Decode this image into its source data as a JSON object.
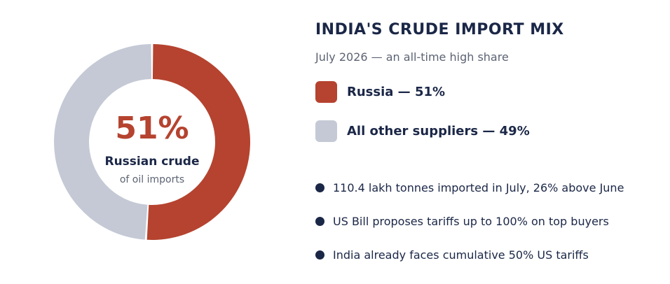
{
  "colors": {
    "russia": "#b5432f",
    "others": "#c4c9d5",
    "navy": "#1b2747",
    "muted": "#5c6373"
  },
  "chart_data": {
    "type": "pie",
    "variant": "donut",
    "title": "INDIA'S CRUDE IMPORT MIX",
    "subtitle": "July 2026 — an all-time high share",
    "slices": [
      {
        "label": "Russia",
        "value": 51,
        "color": "#b5432f",
        "legend": "Russia  —  51%"
      },
      {
        "label": "All other suppliers",
        "value": 49,
        "color": "#c4c9d5",
        "legend": "All other suppliers  —  49%"
      }
    ],
    "center": {
      "value": "51%",
      "label": "Russian crude",
      "sublabel": "of oil imports"
    },
    "notes": [
      "110.4 lakh tonnes imported in July, 26% above June",
      "US Bill proposes tariffs up to 100% on top buyers",
      "India already faces cumulative 50% US tariffs"
    ]
  }
}
